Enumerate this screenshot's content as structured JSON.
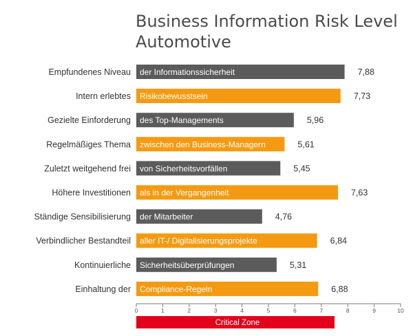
{
  "chart_data": {
    "type": "bar",
    "orientation": "horizontal",
    "title": "Business Information Risk Level Automotive",
    "title_lines": [
      "Business Information Risk Level",
      "Automotive"
    ],
    "categories": [
      "Empfundenes Niveau",
      "Intern erlebtes",
      "Gezielte Einforderung",
      "Regelmäßiges Thema",
      "Zuletzt weitgehend frei",
      "Höhere Investitionen",
      "Ständige Sensibilisierung",
      "Verbindlicher Bestandteil",
      "Kontinuierliche",
      "Einhaltung der"
    ],
    "bar_texts": [
      "der Informationssicherheit",
      "Risikobewusstsein",
      "des Top-Managements",
      "zwischen den Business-Managern",
      "von Sicherheitsvorfällen",
      "als in der Vergangenheit",
      "der Mitarbeiter",
      "aller IT-/ Digitalisierungsprojekte",
      "Sicherheitsüberprüfungen",
      "Compliance-Regeln"
    ],
    "values": [
      7.88,
      7.73,
      5.96,
      5.61,
      5.45,
      7.63,
      4.76,
      6.84,
      5.31,
      6.88
    ],
    "value_labels": [
      "7,88",
      "7,73",
      "5,96",
      "5,61",
      "5,45",
      "7,63",
      "4,76",
      "6,84",
      "5,31",
      "6,88"
    ],
    "bar_colors": [
      "#5b5b5b",
      "#f49a12",
      "#5b5b5b",
      "#f49a12",
      "#5b5b5b",
      "#f49a12",
      "#5b5b5b",
      "#f49a12",
      "#5b5b5b",
      "#f49a12"
    ],
    "xlim": [
      0,
      10
    ],
    "xticks": [
      "0",
      "1",
      "2",
      "3",
      "4",
      "5",
      "6",
      "7",
      "8",
      "9",
      "10"
    ],
    "grid": false,
    "critical_zone": {
      "label": "Critical  Zone",
      "from": 0,
      "to": 7.5,
      "color": "#e3001b"
    }
  }
}
